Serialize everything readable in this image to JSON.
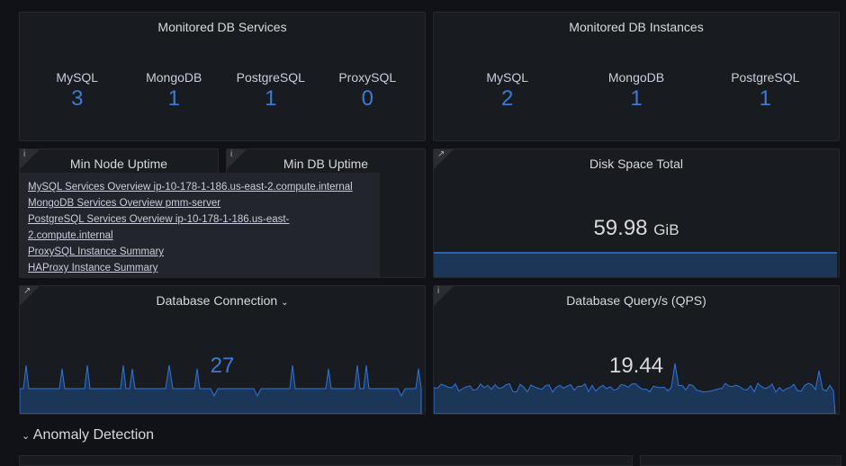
{
  "services": {
    "title": "Monitored DB Services",
    "stats": [
      {
        "label": "MySQL",
        "value": 3
      },
      {
        "label": "MongoDB",
        "value": 1
      },
      {
        "label": "PostgreSQL",
        "value": 1
      },
      {
        "label": "ProxySQL",
        "value": 0
      }
    ]
  },
  "instances": {
    "title": "Monitored DB Instances",
    "stats": [
      {
        "label": "MySQL",
        "value": 2
      },
      {
        "label": "MongoDB",
        "value": 1
      },
      {
        "label": "PostgreSQL",
        "value": 1
      }
    ]
  },
  "node_uptime": {
    "title": "Min Node Uptime"
  },
  "db_uptime": {
    "title": "Min DB Uptime"
  },
  "tooltip": {
    "links": [
      "MySQL Services Overview ip-10-178-1-186.us-east-2.compute.internal",
      "MongoDB Services Overview pmm-server",
      "PostgreSQL Services Overview ip-10-178-1-186.us-east-2.compute.internal",
      "ProxySQL Instance Summary",
      "HAProxy Instance Summary"
    ]
  },
  "disk": {
    "title": "Disk Space Total",
    "value": 59.98,
    "unit": "GiB"
  },
  "connections": {
    "title": "Database Connection",
    "value": 27
  },
  "qps": {
    "title": "Database Query/s (QPS)",
    "value": 19.44
  },
  "row": {
    "title": "Anomaly Detection"
  }
}
